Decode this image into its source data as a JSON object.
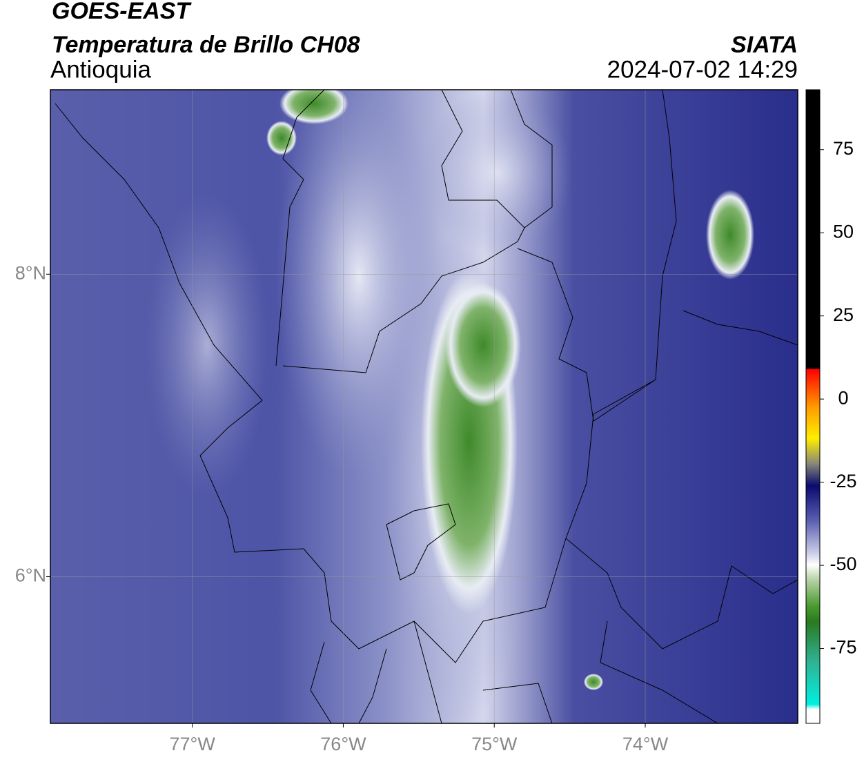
{
  "header": {
    "title": "GOES-EAST",
    "subtitle": "Temperatura de Brillo CH08",
    "region": "Antioquia",
    "source": "SIATA",
    "timestamp": "2024-07-02 14:29"
  },
  "map": {
    "xlim": [
      -77.94,
      -72.99
    ],
    "ylim": [
      5.03,
      9.22
    ],
    "xticks": [
      {
        "value": -77,
        "label": "77°W"
      },
      {
        "value": -76,
        "label": "76°W"
      },
      {
        "value": -75,
        "label": "75°W"
      },
      {
        "value": -74,
        "label": "74°W"
      }
    ],
    "yticks": [
      {
        "value": 8,
        "label": "8°N"
      },
      {
        "value": 6,
        "label": "6°N"
      }
    ],
    "grid": true
  },
  "colorbar": {
    "lim": [
      -97.5,
      93
    ],
    "ticks": [
      75,
      50,
      25,
      0,
      -25,
      -50,
      -75
    ]
  }
}
